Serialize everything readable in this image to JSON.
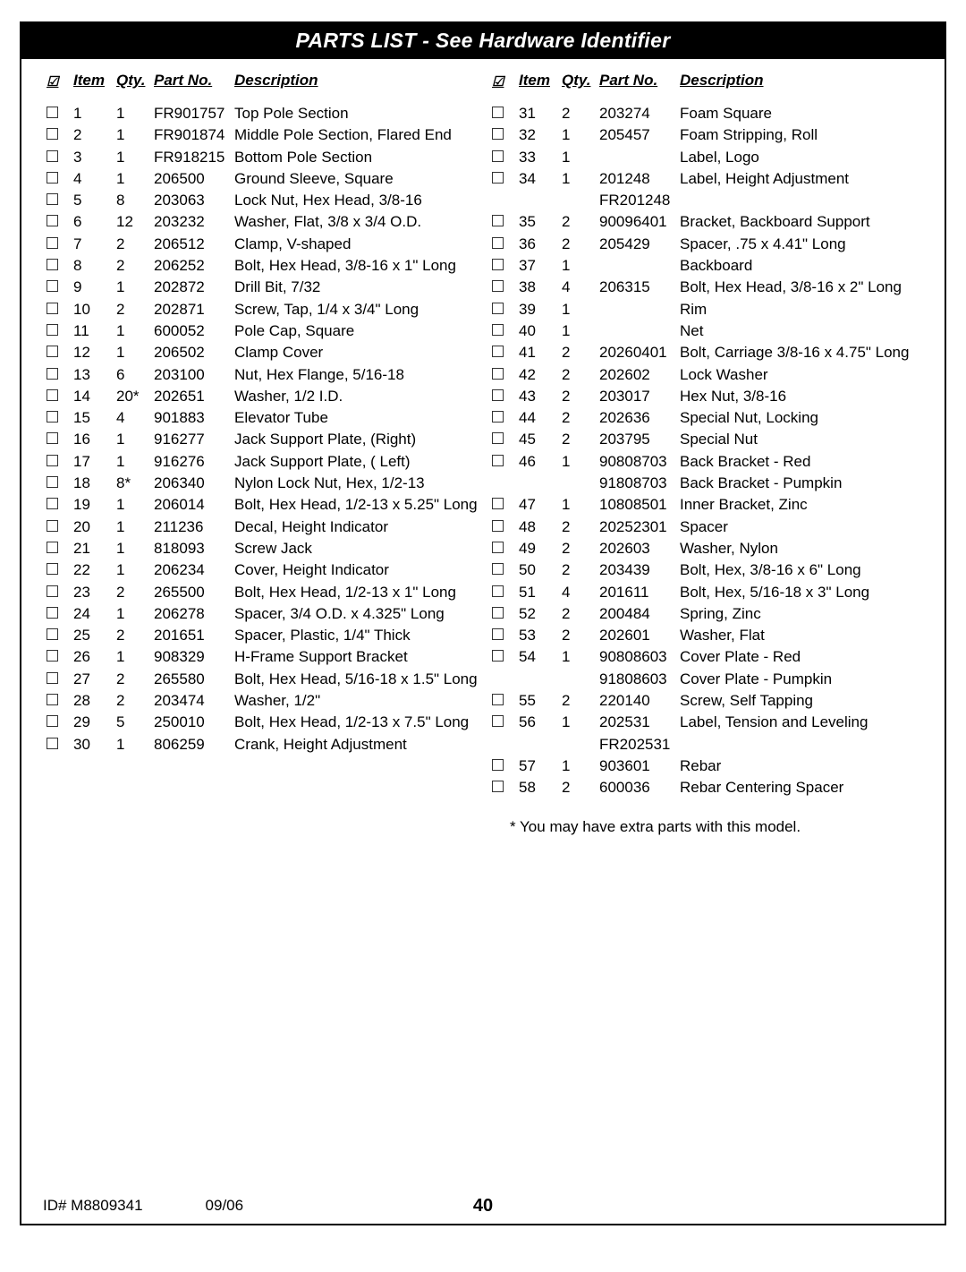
{
  "title": "PARTS LIST - See Hardware Identifier",
  "headers": {
    "item": "Item",
    "qty": "Qty.",
    "part": "Part No.",
    "desc": "Description"
  },
  "left": [
    {
      "i": "1",
      "q": "1",
      "p": "FR901757",
      "d": "Top Pole Section"
    },
    {
      "i": "2",
      "q": "1",
      "p": "FR901874",
      "d": "Middle Pole Section, Flared End"
    },
    {
      "i": "3",
      "q": "1",
      "p": "FR918215",
      "d": "Bottom Pole Section"
    },
    {
      "i": "4",
      "q": "1",
      "p": "206500",
      "d": "Ground Sleeve, Square"
    },
    {
      "i": "5",
      "q": "8",
      "p": "203063",
      "d": "Lock Nut, Hex Head, 3/8-16"
    },
    {
      "i": "6",
      "q": "12",
      "p": "203232",
      "d": "Washer, Flat, 3/8 x 3/4 O.D."
    },
    {
      "i": "7",
      "q": "2",
      "p": "206512",
      "d": "Clamp, V-shaped"
    },
    {
      "i": "8",
      "q": "2",
      "p": "206252",
      "d": "Bolt, Hex Head, 3/8-16 x 1\" Long"
    },
    {
      "i": "9",
      "q": "1",
      "p": "202872",
      "d": "Drill Bit, 7/32"
    },
    {
      "i": "10",
      "q": "2",
      "p": "202871",
      "d": "Screw, Tap, 1/4 x 3/4\" Long"
    },
    {
      "i": "11",
      "q": "1",
      "p": "600052",
      "d": "Pole Cap, Square"
    },
    {
      "i": "12",
      "q": "1",
      "p": "206502",
      "d": "Clamp Cover"
    },
    {
      "i": "13",
      "q": "6",
      "p": "203100",
      "d": "Nut, Hex Flange, 5/16-18"
    },
    {
      "i": "14",
      "q": "20*",
      "p": "202651",
      "d": "Washer, 1/2 I.D."
    },
    {
      "i": "15",
      "q": "4",
      "p": "901883",
      "d": "Elevator Tube"
    },
    {
      "i": "16",
      "q": "1",
      "p": "916277",
      "d": "Jack Support Plate, (Right)"
    },
    {
      "i": "17",
      "q": "1",
      "p": "916276",
      "d": "Jack Support Plate, ( Left)"
    },
    {
      "i": "18",
      "q": "8*",
      "p": "206340",
      "d": "Nylon Lock Nut, Hex, 1/2-13"
    },
    {
      "i": "19",
      "q": "1",
      "p": "206014",
      "d": "Bolt, Hex Head, 1/2-13 x 5.25\" Long"
    },
    {
      "i": "20",
      "q": "1",
      "p": "211236",
      "d": "Decal, Height Indicator"
    },
    {
      "i": "21",
      "q": "1",
      "p": "818093",
      "d": "Screw Jack"
    },
    {
      "i": "22",
      "q": "1",
      "p": "206234",
      "d": "Cover, Height Indicator"
    },
    {
      "i": "23",
      "q": "2",
      "p": "265500",
      "d": "Bolt, Hex Head, 1/2-13 x 1\" Long"
    },
    {
      "i": "24",
      "q": "1",
      "p": "206278",
      "d": "Spacer, 3/4 O.D. x 4.325\" Long"
    },
    {
      "i": "25",
      "q": "2",
      "p": "201651",
      "d": "Spacer, Plastic, 1/4\" Thick"
    },
    {
      "i": "26",
      "q": "1",
      "p": "908329",
      "d": "H-Frame Support Bracket"
    },
    {
      "i": "27",
      "q": "2",
      "p": "265580",
      "d": "Bolt, Hex Head, 5/16-18 x 1.5\" Long"
    },
    {
      "i": "28",
      "q": "2",
      "p": "203474",
      "d": "Washer, 1/2\""
    },
    {
      "i": "29",
      "q": "5",
      "p": "250010",
      "d": "Bolt, Hex Head, 1/2-13 x 7.5\" Long"
    },
    {
      "i": "30",
      "q": "1",
      "p": "806259",
      "d": "Crank, Height Adjustment"
    }
  ],
  "right": [
    {
      "i": "31",
      "q": "2",
      "p": "203274",
      "d": "Foam Square"
    },
    {
      "i": "32",
      "q": "1",
      "p": "205457",
      "d": "Foam Stripping, Roll"
    },
    {
      "i": "33",
      "q": "1",
      "p": "",
      "d": "Label, Logo"
    },
    {
      "i": "34",
      "q": "1",
      "p": "201248",
      "d": "Label, Height Adjustment",
      "sub": [
        {
          "p": "FR201248",
          "d": ""
        }
      ]
    },
    {
      "i": "35",
      "q": "2",
      "p": "90096401",
      "d": "Bracket, Backboard Support"
    },
    {
      "i": "36",
      "q": "2",
      "p": "205429",
      "d": "Spacer, .75 x 4.41\" Long"
    },
    {
      "i": "37",
      "q": "1",
      "p": "",
      "d": "Backboard"
    },
    {
      "i": "38",
      "q": "4",
      "p": "206315",
      "d": "Bolt, Hex Head, 3/8-16 x 2\" Long"
    },
    {
      "i": "39",
      "q": "1",
      "p": "",
      "d": "Rim"
    },
    {
      "i": "40",
      "q": "1",
      "p": "",
      "d": "Net"
    },
    {
      "i": "41",
      "q": "2",
      "p": "20260401",
      "d": "Bolt, Carriage 3/8-16 x 4.75\" Long"
    },
    {
      "i": "42",
      "q": "2",
      "p": "202602",
      "d": "Lock Washer"
    },
    {
      "i": "43",
      "q": "2",
      "p": "203017",
      "d": "Hex Nut, 3/8-16"
    },
    {
      "i": "44",
      "q": "2",
      "p": "202636",
      "d": "Special Nut, Locking"
    },
    {
      "i": "45",
      "q": "2",
      "p": "203795",
      "d": "Special Nut"
    },
    {
      "i": "46",
      "q": "1",
      "p": "90808703",
      "d": "Back Bracket - Red",
      "sub": [
        {
          "p": "91808703",
          "d": "Back Bracket - Pumpkin"
        }
      ]
    },
    {
      "i": "47",
      "q": "1",
      "p": "10808501",
      "d": "Inner Bracket, Zinc"
    },
    {
      "i": "48",
      "q": "2",
      "p": "20252301",
      "d": "Spacer"
    },
    {
      "i": "49",
      "q": "2",
      "p": "202603",
      "d": "Washer, Nylon"
    },
    {
      "i": "50",
      "q": "2",
      "p": "203439",
      "d": "Bolt, Hex, 3/8-16 x 6\" Long"
    },
    {
      "i": "51",
      "q": "4",
      "p": "201611",
      "d": "Bolt, Hex, 5/16-18 x 3\" Long"
    },
    {
      "i": "52",
      "q": "2",
      "p": "200484",
      "d": "Spring, Zinc"
    },
    {
      "i": "53",
      "q": "2",
      "p": "202601",
      "d": "Washer, Flat"
    },
    {
      "i": "54",
      "q": "1",
      "p": "90808603",
      "d": "Cover Plate - Red",
      "sub": [
        {
          "p": "91808603",
          "d": "Cover Plate - Pumpkin"
        }
      ]
    },
    {
      "i": "55",
      "q": "2",
      "p": "220140",
      "d": "Screw, Self Tapping"
    },
    {
      "i": "56",
      "q": "1",
      "p": "202531",
      "d": "Label, Tension and Leveling",
      "sub": [
        {
          "p": "FR202531",
          "d": ""
        }
      ]
    },
    {
      "i": "57",
      "q": "1",
      "p": "903601",
      "d": "Rebar"
    },
    {
      "i": "58",
      "q": "2",
      "p": "600036",
      "d": "Rebar Centering Spacer"
    }
  ],
  "footnote": "*  You may have extra parts with this model.",
  "footer": {
    "id": "ID#   M8809341",
    "date": "09/06",
    "page": "40"
  }
}
